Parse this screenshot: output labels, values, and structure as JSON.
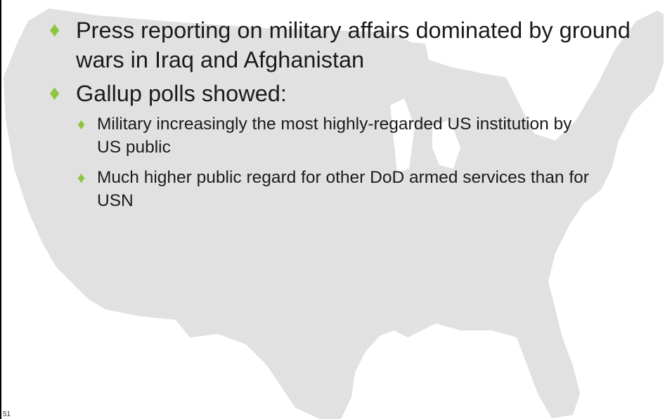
{
  "slide": {
    "bullets": [
      {
        "text": "Press reporting on military affairs dominated by ground wars in Iraq and Afghanistan",
        "sub": []
      },
      {
        "text": "Gallup polls showed:",
        "sub": [
          {
            "text": "Military increasingly the most highly-regarded US institution by US public"
          },
          {
            "text": "Much higher public regard for other DoD armed services than for USN"
          }
        ]
      }
    ],
    "bullet_glyph": "♦",
    "bullet_color": "#8cc63f",
    "page_number": "51",
    "background_icon": "us-map-silhouette-icon"
  }
}
